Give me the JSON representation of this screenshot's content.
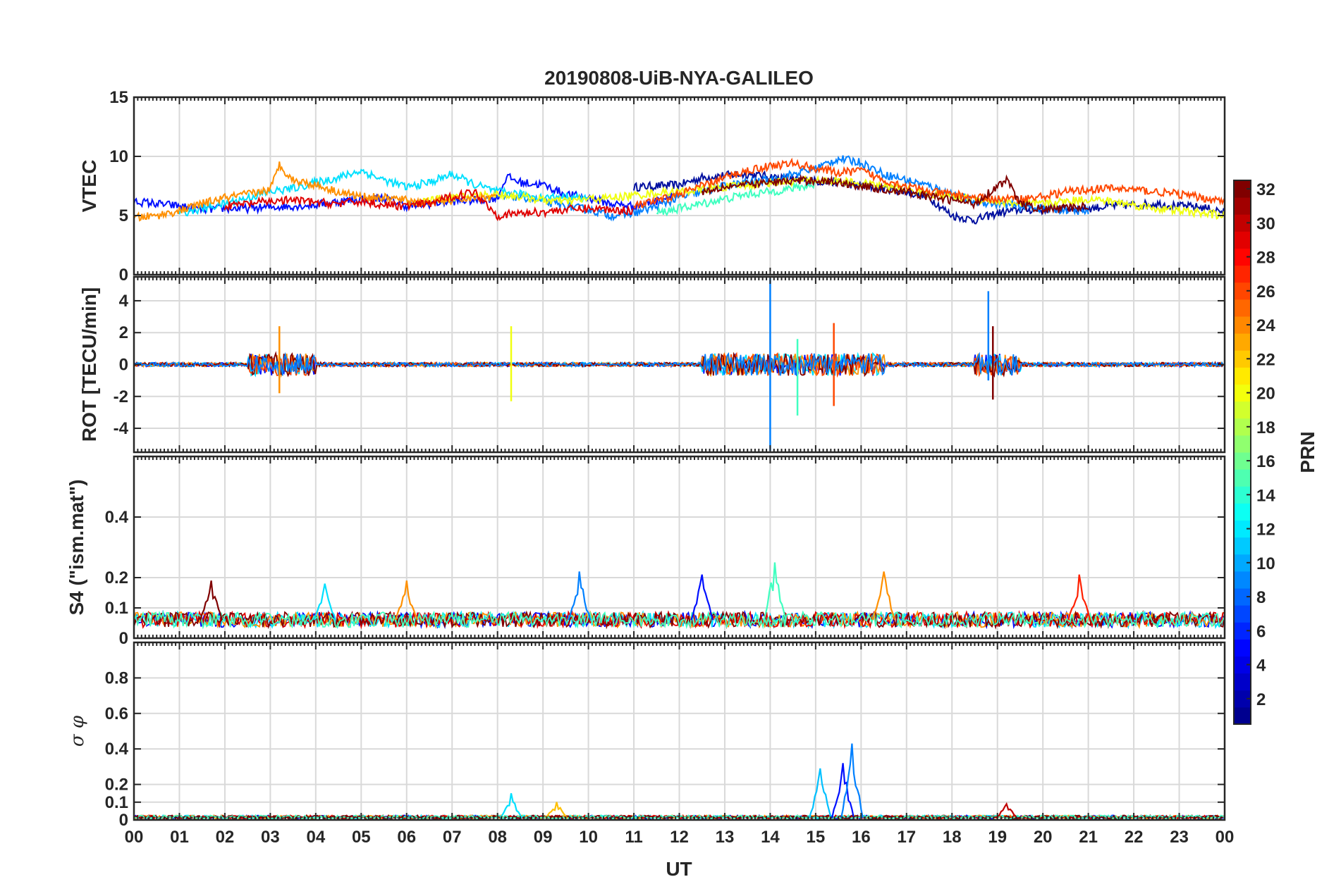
{
  "chart_data": {
    "type": "line",
    "title": "20190808-UiB-NYA-GALILEO",
    "xlabel": "UT",
    "xlim": [
      0,
      24
    ],
    "x_tick_labels": [
      "00",
      "01",
      "02",
      "03",
      "04",
      "05",
      "06",
      "07",
      "08",
      "09",
      "10",
      "11",
      "12",
      "13",
      "14",
      "15",
      "16",
      "17",
      "18",
      "19",
      "20",
      "21",
      "22",
      "23",
      "00"
    ],
    "grid": true,
    "colorbar": {
      "label": "PRN",
      "range": [
        1,
        32
      ],
      "tick_labels": [
        "2",
        "4",
        "6",
        "8",
        "10",
        "12",
        "14",
        "16",
        "18",
        "20",
        "22",
        "24",
        "26",
        "28",
        "30",
        "32"
      ],
      "colormap": "jet"
    },
    "panels": [
      {
        "ylabel": "VTEC",
        "ylim": [
          0,
          15
        ],
        "y_tick_labels": [
          "0",
          "5",
          "10",
          "15"
        ],
        "series_note_free": true,
        "series": [
          {
            "prn": 1,
            "color": "#000f9f",
            "x": [
              11,
              12,
              12.5,
              13,
              13.5,
              14,
              14.5,
              15,
              15.5,
              16,
              16.5,
              17,
              17.5,
              18,
              18.5,
              19,
              19.5,
              20,
              20.5,
              21,
              21.5,
              22,
              22.5,
              23,
              23.5,
              24
            ],
            "y": [
              7.4,
              7.6,
              8.2,
              8.4,
              8.5,
              8.3,
              8.0,
              7.9,
              7.8,
              7.5,
              7.3,
              7.0,
              6.5,
              5.0,
              4.6,
              5.2,
              5.5,
              5.5,
              5.6,
              5.6,
              5.8,
              5.9,
              6.0,
              5.8,
              5.7,
              5.3
            ]
          },
          {
            "prn": 4,
            "color": "#0010ff",
            "x": [
              0,
              0.5,
              1,
              1.5,
              2,
              2.5,
              3,
              3.5,
              4,
              4.5,
              5,
              5.5,
              6,
              6.5,
              7,
              7.5,
              8,
              8.2,
              8.5,
              9,
              9.5,
              10,
              10.5,
              11,
              11.5,
              12
            ],
            "y": [
              6.2,
              6.0,
              5.8,
              5.5,
              5.6,
              5.6,
              5.7,
              5.8,
              5.9,
              6.2,
              6.4,
              6.5,
              5.8,
              6.0,
              6.2,
              6.3,
              6.5,
              8.3,
              7.8,
              7.6,
              6.8,
              6.5,
              6.0,
              5.8,
              6.2,
              7.0
            ]
          },
          {
            "prn": 9,
            "color": "#0080ff",
            "x": [
              8,
              8.5,
              9,
              9.5,
              10,
              10.5,
              11,
              11.5,
              12,
              12.5,
              13,
              13.5,
              14,
              14.5,
              15,
              15.5,
              16,
              16.5,
              17,
              17.5,
              18,
              18.5,
              19,
              19.5,
              20,
              20.5,
              21
            ],
            "y": [
              6.5,
              6.6,
              6.2,
              5.8,
              5.5,
              5.0,
              5.2,
              5.8,
              6.5,
              7.0,
              7.5,
              7.8,
              8.0,
              8.5,
              9.0,
              9.8,
              9.5,
              8.5,
              8.0,
              7.5,
              6.8,
              6.2,
              6.0,
              5.8,
              5.6,
              5.5,
              5.3
            ]
          },
          {
            "prn": 13,
            "color": "#00e0ff",
            "x": [
              1,
              1.5,
              2,
              2.5,
              3,
              3.5,
              4,
              4.5,
              5,
              5.5,
              6,
              6.5,
              7,
              7.5,
              8,
              8.5,
              9,
              9.5,
              10
            ],
            "y": [
              5.2,
              5.6,
              6.0,
              6.5,
              7.0,
              7.3,
              7.8,
              8.2,
              8.8,
              8.0,
              7.4,
              7.8,
              8.5,
              7.6,
              7.0,
              6.8,
              6.5,
              6.6,
              6.4
            ]
          },
          {
            "prn": 15,
            "color": "#40ffc0",
            "x": [
              11.5,
              12,
              12.5,
              13,
              13.5,
              14,
              14.5,
              15
            ],
            "y": [
              5.2,
              5.6,
              6.0,
              6.4,
              6.8,
              7.0,
              7.3,
              7.6
            ]
          },
          {
            "prn": 20,
            "color": "#f0ff10",
            "x": [
              6,
              6.5,
              7,
              7.5,
              8,
              8.5,
              9,
              9.5,
              10,
              10.5,
              11,
              11.5,
              12,
              12.5,
              13,
              13.5,
              14,
              14.5,
              15,
              15.5,
              16,
              16.5,
              17,
              17.5,
              18,
              18.5,
              19,
              19.5,
              20,
              20.5,
              21,
              21.5,
              22,
              22.5,
              23,
              23.5,
              24
            ],
            "y": [
              6.0,
              6.3,
              6.5,
              6.7,
              6.8,
              6.6,
              6.3,
              6.2,
              6.4,
              6.5,
              6.7,
              6.9,
              7.0,
              7.2,
              7.4,
              7.6,
              7.8,
              7.9,
              8.0,
              7.9,
              7.7,
              7.5,
              7.2,
              6.9,
              6.6,
              6.4,
              6.2,
              6.0,
              6.0,
              6.2,
              6.4,
              6.2,
              5.9,
              5.6,
              5.4,
              5.2,
              5.0
            ]
          },
          {
            "prn": 24,
            "color": "#ff9000",
            "x": [
              0,
              0.5,
              1,
              1.5,
              2,
              2.5,
              3,
              3.2,
              3.5,
              4,
              4.5,
              5,
              5.5,
              6,
              6.5,
              7,
              7.5,
              8
            ],
            "y": [
              4.8,
              5.0,
              5.4,
              6.0,
              6.5,
              6.8,
              7.2,
              9.3,
              8.0,
              7.6,
              7.0,
              6.6,
              6.5,
              6.3,
              6.1,
              6.3,
              6.5,
              6.6
            ]
          },
          {
            "prn": 26,
            "color": "#ff4800",
            "x": [
              11,
              11.5,
              12,
              12.5,
              13,
              13.5,
              14,
              14.5,
              15,
              15.5,
              16,
              16.5,
              17,
              17.5,
              18,
              18.5,
              19,
              19.5,
              20,
              20.5,
              21,
              21.5,
              22,
              22.5,
              23,
              23.5,
              24
            ],
            "y": [
              5.8,
              6.2,
              6.8,
              7.5,
              8.2,
              8.8,
              9.2,
              9.4,
              9.0,
              8.6,
              8.8,
              8.0,
              7.5,
              7.0,
              6.8,
              6.5,
              6.4,
              6.4,
              6.6,
              7.0,
              7.2,
              7.3,
              7.2,
              7.0,
              6.8,
              6.5,
              6.2
            ]
          },
          {
            "prn": 29,
            "color": "#e00000",
            "x": [
              2,
              2.5,
              3,
              3.5,
              4,
              4.5,
              5,
              5.5,
              6,
              6.5,
              7,
              7.5,
              8,
              8.5,
              9,
              9.5,
              10,
              10.5,
              11
            ],
            "y": [
              5.8,
              6.0,
              6.2,
              6.3,
              6.1,
              6.0,
              6.2,
              5.9,
              5.8,
              6.0,
              6.6,
              7.0,
              5.0,
              5.2,
              5.3,
              5.5,
              5.6,
              5.5,
              5.4
            ]
          },
          {
            "prn": 32,
            "color": "#800000",
            "x": [
              12.5,
              13,
              13.5,
              14,
              14.5,
              15,
              15.5,
              16,
              16.5,
              17,
              17.5,
              18,
              18.5,
              19,
              19.2,
              19.5,
              20,
              20.5,
              21
            ],
            "y": [
              7.0,
              7.5,
              7.6,
              7.8,
              7.9,
              8.0,
              7.8,
              7.5,
              7.2,
              7.0,
              6.6,
              6.3,
              6.0,
              7.5,
              8.0,
              6.0,
              5.5,
              5.6,
              5.8
            ]
          }
        ]
      },
      {
        "ylabel": "ROT [TECU/min]",
        "ylim": [
          -5.5,
          5.5
        ],
        "y_tick_labels": [
          "-4",
          "-2",
          "0",
          "2",
          "4"
        ],
        "spikes": [
          {
            "prn": 24,
            "color": "#ff9000",
            "x": 3.2,
            "min": -1.8,
            "max": 2.4
          },
          {
            "prn": 20,
            "color": "#f0ff10",
            "x": 8.3,
            "min": -2.3,
            "max": 2.4
          },
          {
            "prn": 9,
            "color": "#0080ff",
            "x": 14.0,
            "min": -5.5,
            "max": 5.5
          },
          {
            "prn": 15,
            "color": "#40ffc0",
            "x": 14.6,
            "min": -3.2,
            "max": 1.6
          },
          {
            "prn": 26,
            "color": "#ff4800",
            "x": 15.4,
            "min": -2.6,
            "max": 2.6
          },
          {
            "prn": 9,
            "color": "#0080ff",
            "x": 18.8,
            "min": -1.0,
            "max": 4.6
          },
          {
            "prn": 32,
            "color": "#800000",
            "x": 18.9,
            "min": -2.2,
            "max": 2.4
          }
        ]
      },
      {
        "ylabel": "S4 (\"ism.mat\")",
        "ylim": [
          0,
          0.6
        ],
        "y_tick_labels": [
          "0",
          "0.1",
          "0.2",
          "0.4"
        ],
        "peaks": [
          {
            "prn": 32,
            "color": "#800000",
            "x": 1.7,
            "value": 0.19
          },
          {
            "prn": 13,
            "color": "#00e0ff",
            "x": 4.2,
            "value": 0.18
          },
          {
            "prn": 24,
            "color": "#ff9000",
            "x": 6.0,
            "value": 0.19
          },
          {
            "prn": 9,
            "color": "#0080ff",
            "x": 9.8,
            "value": 0.22
          },
          {
            "prn": 4,
            "color": "#0010ff",
            "x": 12.5,
            "value": 0.21
          },
          {
            "prn": 15,
            "color": "#40ffc0",
            "x": 14.1,
            "value": 0.25
          },
          {
            "prn": 24,
            "color": "#ff9000",
            "x": 16.5,
            "value": 0.22
          },
          {
            "prn": 28,
            "color": "#ff2000",
            "x": 20.8,
            "value": 0.21
          }
        ]
      },
      {
        "ylabel": "σ φ",
        "ylim": [
          0,
          1
        ],
        "y_tick_labels": [
          "0",
          "0.1",
          "0.2",
          "0.4",
          "0.6",
          "0.8"
        ],
        "peaks": [
          {
            "prn": 13,
            "color": "#00e0ff",
            "x": 8.3,
            "value": 0.15
          },
          {
            "prn": 22,
            "color": "#ffc000",
            "x": 9.3,
            "value": 0.1
          },
          {
            "prn": 11,
            "color": "#00c0ff",
            "x": 15.1,
            "value": 0.29
          },
          {
            "prn": 4,
            "color": "#0010ff",
            "x": 15.6,
            "value": 0.32
          },
          {
            "prn": 9,
            "color": "#0080ff",
            "x": 15.8,
            "value": 0.43
          },
          {
            "prn": 30,
            "color": "#c00000",
            "x": 19.2,
            "value": 0.09
          }
        ]
      }
    ]
  }
}
